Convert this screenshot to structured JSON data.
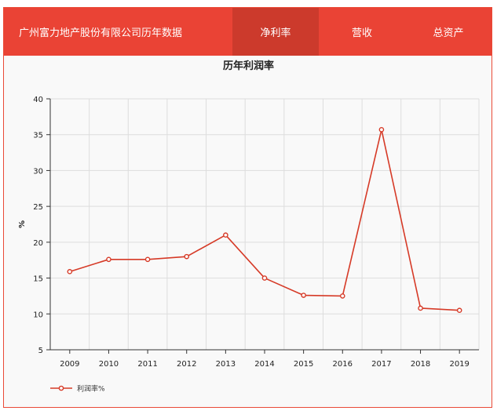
{
  "header": {
    "title": "广州富力地产股份有限公司历年数据",
    "tabs": [
      {
        "label": "净利率",
        "active": true
      },
      {
        "label": "营收",
        "active": false
      },
      {
        "label": "总资产",
        "active": false
      }
    ]
  },
  "colors": {
    "header_bg": "#ea4335",
    "active_tab_bg": "#cc3a2c",
    "series": "#d63a27"
  },
  "chart_data": {
    "type": "line",
    "title": "历年利润率",
    "xlabel": "",
    "ylabel": "%",
    "categories": [
      "2009",
      "2010",
      "2011",
      "2012",
      "2013",
      "2014",
      "2015",
      "2016",
      "2017",
      "2018",
      "2019"
    ],
    "series": [
      {
        "name": "利润率%",
        "values": [
          15.9,
          17.6,
          17.6,
          18.0,
          21.0,
          15.0,
          12.6,
          12.5,
          35.7,
          10.8,
          10.5
        ]
      }
    ],
    "ylim": [
      5,
      40
    ],
    "yticks": [
      5,
      10,
      15,
      20,
      25,
      30,
      35,
      40
    ],
    "grid": true,
    "legend": "bottom-left"
  }
}
